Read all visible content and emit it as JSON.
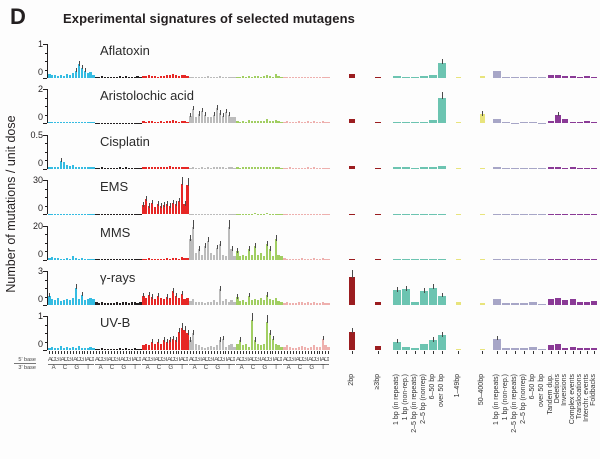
{
  "panel_letter": "D",
  "title": "Experimental signatures of selected mutagens",
  "y_axis_label": "Number of mutations / unit dose",
  "colors": {
    "sub_classes": [
      "#35bce2",
      "#231f20",
      "#e62725",
      "#bcbcbc",
      "#a1ce62",
      "#eeb0ae"
    ],
    "mnv": "#9b1d20",
    "del": "#6cc4b1",
    "size": "#e8e47c",
    "ins": "#a7a6c7",
    "sv": "#8a3a96",
    "axis": "#231f20",
    "error": "#4a4a4a"
  },
  "x_axis": {
    "base5_label": "5' base",
    "base3_label": "3' base",
    "context5": "ACGTACGTACGTACGT",
    "context3": [
      "A",
      "C",
      "G",
      "T"
    ],
    "mnv_labels": [
      "2bp",
      "≥3bp"
    ],
    "del_labels": [
      "1 bp (in repeats)",
      "1 bp (non-rep.)",
      "2–5 bp (in repeats)",
      "2–5 bp (nonrep)",
      "6–50 bp",
      "over 50 bp"
    ],
    "size_labels": [
      "1–49bp",
      "50–400bp"
    ],
    "ins_labels": [
      "1 bp (in repeats)",
      "1 bp (non-rep.)",
      "2–5 bp (in repeats)",
      "2–5 bp (nonrep)",
      "6–50 bp",
      "over 50 bp"
    ],
    "sv_labels": [
      "Tandem dup.",
      "Deletions",
      "Inversions",
      "Complex events",
      "Translocations",
      "Interchr. events",
      "Foldbacks"
    ]
  },
  "chart_data": {
    "type": "bar",
    "title": "Experimental signatures of selected mutagens",
    "ylabel": "Number of mutations / unit dose",
    "substitution_classes": [
      "C>A",
      "C>G",
      "C>T",
      "T>A",
      "T>C",
      "T>G"
    ],
    "rows": [
      {
        "name": "Aflatoxin",
        "ymax": 1,
        "ymax_label": "1",
        "ymin_label": "0",
        "sub": {
          "CA": [
            0.12,
            0.08,
            0.1,
            0.06,
            0.1,
            0.05,
            0.12,
            0.08,
            0.15,
            0.22,
            0.4,
            0.3,
            0.22,
            0.15,
            0.18,
            0.1
          ],
          "CG": [
            0.04,
            0.03,
            0.05,
            0.03,
            0.03,
            0.02,
            0.04,
            0.03,
            0.05,
            0.04,
            0.06,
            0.04,
            0.03,
            0.04,
            0.05,
            0.03
          ],
          "CT": [
            0.06,
            0.05,
            0.08,
            0.06,
            0.05,
            0.04,
            0.06,
            0.05,
            0.08,
            0.1,
            0.12,
            0.08,
            0.06,
            0.08,
            0.1,
            0.06
          ],
          "TA": [
            0.03,
            0.04,
            0.03,
            0.02,
            0.04,
            0.03,
            0.05,
            0.03,
            0.04,
            0.03,
            0.05,
            0.04,
            0.03,
            0.04,
            0.04,
            0.03
          ],
          "TC": [
            0.04,
            0.03,
            0.05,
            0.04,
            0.05,
            0.04,
            0.06,
            0.05,
            0.04,
            0.05,
            0.08,
            0.05,
            0.04,
            0.12,
            0.05,
            0.04
          ],
          "TG": [
            0.03,
            0.02,
            0.03,
            0.02,
            0.03,
            0.04,
            0.03,
            0.02,
            0.04,
            0.03,
            0.04,
            0.03,
            0.02,
            0.03,
            0.04,
            0.03
          ]
        },
        "mnv": [
          0.12,
          0.03
        ],
        "del": [
          0.05,
          0.04,
          0.03,
          0.05,
          0.08,
          0.45
        ],
        "size": [
          0.04,
          0.06
        ],
        "ins": [
          0.2,
          0.04,
          0.03,
          0.03,
          0.04,
          0.02
        ],
        "sv": [
          0.08,
          0.1,
          0.05,
          0.06,
          0.04,
          0.05,
          0.04
        ]
      },
      {
        "name": "Aristolochic acid",
        "ymax": 2,
        "ymax_label": "2",
        "ymin_label": "0",
        "sub": {
          "CA": [
            0.1,
            0.08,
            0.09,
            0.07,
            0.08,
            0.06,
            0.08,
            0.07,
            0.1,
            0.08,
            0.1,
            0.08,
            0.07,
            0.08,
            0.09,
            0.07
          ],
          "CG": [
            0.04,
            0.03,
            0.04,
            0.03,
            0.03,
            0.04,
            0.03,
            0.03,
            0.05,
            0.04,
            0.05,
            0.04,
            0.03,
            0.04,
            0.04,
            0.03
          ],
          "CT": [
            0.12,
            0.1,
            0.15,
            0.12,
            0.1,
            0.08,
            0.12,
            0.1,
            0.15,
            0.12,
            0.18,
            0.12,
            0.1,
            0.12,
            0.14,
            0.1
          ],
          "TA": [
            0.45,
            0.85,
            0.4,
            0.55,
            0.75,
            0.5,
            0.4,
            0.35,
            0.5,
            0.9,
            0.6,
            0.45,
            0.7,
            0.5,
            0.35,
            0.4
          ],
          "TC": [
            0.15,
            0.1,
            0.12,
            0.1,
            0.2,
            0.12,
            0.15,
            0.12,
            0.15,
            0.12,
            0.25,
            0.15,
            0.12,
            0.18,
            0.12,
            0.1
          ],
          "TG": [
            0.1,
            0.12,
            0.08,
            0.08,
            0.1,
            0.15,
            0.1,
            0.08,
            0.12,
            0.1,
            0.15,
            0.1,
            0.08,
            0.12,
            0.1,
            0.08
          ]
        },
        "mnv": [
          0.25,
          0.06
        ],
        "del": [
          0.1,
          0.08,
          0.06,
          0.1,
          0.2,
          1.5
        ],
        "size": [
          0.08,
          0.55
        ],
        "ins": [
          0.25,
          0.06,
          0.05,
          0.06,
          0.06,
          0.04
        ],
        "sv": [
          0.15,
          0.5,
          0.28,
          0.1,
          0.08,
          0.14,
          0.1
        ]
      },
      {
        "name": "Cisplatin",
        "ymax": 0.5,
        "ymax_label": "0.5",
        "ymin_label": "0",
        "sub": {
          "CA": [
            0.02,
            0.02,
            0.03,
            0.02,
            0.12,
            0.1,
            0.06,
            0.04,
            0.05,
            0.03,
            0.03,
            0.02,
            0.02,
            0.02,
            0.03,
            0.02
          ],
          "CG": [
            0.01,
            0.01,
            0.02,
            0.01,
            0.01,
            0.01,
            0.01,
            0.01,
            0.02,
            0.01,
            0.02,
            0.01,
            0.01,
            0.01,
            0.01,
            0.01
          ],
          "CT": [
            0.02,
            0.02,
            0.03,
            0.02,
            0.02,
            0.02,
            0.02,
            0.02,
            0.03,
            0.04,
            0.03,
            0.02,
            0.02,
            0.03,
            0.02,
            0.02
          ],
          "TA": [
            0.01,
            0.02,
            0.01,
            0.01,
            0.02,
            0.01,
            0.02,
            0.01,
            0.02,
            0.02,
            0.03,
            0.02,
            0.01,
            0.02,
            0.02,
            0.01
          ],
          "TC": [
            0.02,
            0.01,
            0.02,
            0.02,
            0.02,
            0.02,
            0.03,
            0.02,
            0.02,
            0.02,
            0.03,
            0.02,
            0.02,
            0.02,
            0.02,
            0.01
          ],
          "TG": [
            0.01,
            0.01,
            0.02,
            0.01,
            0.01,
            0.01,
            0.01,
            0.01,
            0.02,
            0.01,
            0.02,
            0.01,
            0.01,
            0.01,
            0.01,
            0.01
          ]
        },
        "mnv": [
          0.04,
          0.01
        ],
        "del": [
          0.02,
          0.02,
          0.01,
          0.02,
          0.03,
          0.04
        ],
        "size": [
          0.01,
          0.01
        ],
        "ins": [
          0.03,
          0.01,
          0.01,
          0.01,
          0.01,
          0.01
        ],
        "sv": [
          0.02,
          0.02,
          0.01,
          0.02,
          0.01,
          0.01,
          0.01
        ]
      },
      {
        "name": "EMS",
        "ymax": 30,
        "ymax_label": "30",
        "ymin_label": "0",
        "sub": {
          "CA": [
            0.3,
            0.2,
            0.3,
            0.2,
            0.2,
            0.2,
            0.3,
            0.2,
            0.4,
            0.3,
            0.3,
            0.2,
            0.2,
            0.3,
            0.3,
            0.2
          ],
          "CG": [
            0.3,
            0.2,
            0.2,
            0.2,
            0.2,
            0.2,
            0.2,
            0.2,
            0.3,
            0.2,
            0.3,
            0.2,
            0.2,
            0.2,
            0.2,
            0.2
          ],
          "CT": [
            8,
            13,
            7,
            10,
            6,
            9,
            7,
            8,
            9,
            7,
            10,
            9,
            12,
            27,
            9,
            26
          ],
          "TA": [
            0.3,
            0.3,
            0.2,
            0.2,
            0.3,
            0.2,
            0.3,
            0.2,
            0.3,
            0.3,
            0.4,
            0.3,
            0.2,
            0.3,
            0.3,
            0.2
          ],
          "TC": [
            0.5,
            0.4,
            0.5,
            0.4,
            0.6,
            0.5,
            0.7,
            0.5,
            0.6,
            0.5,
            0.8,
            0.6,
            0.5,
            0.6,
            0.5,
            0.4
          ],
          "TG": [
            0.3,
            0.2,
            0.3,
            0.2,
            0.2,
            0.3,
            0.3,
            0.2,
            0.3,
            0.3,
            0.4,
            0.3,
            0.2,
            0.3,
            0.3,
            0.2
          ]
        },
        "mnv": [
          0.5,
          0.2
        ],
        "del": [
          0.4,
          0.3,
          0.2,
          0.3,
          0.4,
          0.5
        ],
        "size": [
          0.2,
          0.2
        ],
        "ins": [
          0.5,
          0.2,
          0.2,
          0.2,
          0.3,
          0.2
        ],
        "sv": [
          0.3,
          0.3,
          0.2,
          0.3,
          0.2,
          0.2,
          0.2
        ]
      },
      {
        "name": "MMS",
        "ymax": 20,
        "ymax_label": "20",
        "ymin_label": "0",
        "sub": {
          "CA": [
            1.2,
            1.6,
            0.8,
            1.0,
            0.6,
            0.5,
            0.7,
            0.6,
            2.0,
            0.8,
            0.6,
            0.8,
            0.5,
            0.5,
            0.6,
            0.4
          ],
          "CG": [
            0.3,
            0.2,
            0.3,
            0.2,
            0.2,
            0.2,
            0.3,
            0.2,
            0.3,
            0.2,
            0.3,
            0.2,
            0.2,
            0.3,
            0.2,
            0.2
          ],
          "CT": [
            0.6,
            0.5,
            0.8,
            0.6,
            0.5,
            0.4,
            0.6,
            0.5,
            0.8,
            0.6,
            1.0,
            0.7,
            0.6,
            1.4,
            0.8,
            1.2
          ],
          "TA": [
            12,
            19,
            4,
            6,
            3,
            8,
            11,
            4,
            3,
            7,
            9,
            3,
            2,
            19,
            6,
            2
          ],
          "TC": [
            5,
            2,
            3,
            2,
            6,
            3,
            8,
            3,
            4,
            2,
            9,
            6,
            2,
            12,
            3,
            2
          ],
          "TG": [
            0.8,
            0.5,
            0.6,
            0.4,
            0.5,
            0.6,
            0.8,
            0.5,
            0.6,
            0.5,
            0.8,
            0.6,
            0.4,
            1.0,
            0.6,
            0.4
          ]
        },
        "mnv": [
          0.5,
          0.2
        ],
        "del": [
          0.6,
          0.4,
          0.3,
          0.4,
          0.5,
          0.6
        ],
        "size": [
          0.2,
          0.2
        ],
        "ins": [
          0.6,
          0.3,
          0.2,
          0.3,
          0.3,
          0.2
        ],
        "sv": [
          0.4,
          0.4,
          0.3,
          0.3,
          0.3,
          0.2,
          0.3
        ]
      },
      {
        "name": "γ-rays",
        "ymax": 3,
        "ymax_label": "3",
        "ymin_label": "0",
        "sub": {
          "CA": [
            0.8,
            0.5,
            0.45,
            0.6,
            0.35,
            0.4,
            0.5,
            0.4,
            0.6,
            1.5,
            0.5,
            0.9,
            0.4,
            0.5,
            0.65,
            0.5
          ],
          "CG": [
            0.3,
            0.2,
            0.25,
            0.2,
            0.2,
            0.15,
            0.2,
            0.25,
            0.2,
            0.3,
            0.25,
            0.2,
            0.3,
            0.25,
            0.2,
            0.3
          ],
          "CT": [
            0.8,
            0.6,
            0.9,
            0.7,
            0.5,
            0.8,
            0.6,
            0.5,
            0.7,
            0.6,
            1.2,
            0.8,
            0.6,
            1.0,
            0.5,
            0.6
          ],
          "TA": [
            0.35,
            0.5,
            0.3,
            0.25,
            0.3,
            0.2,
            0.3,
            0.25,
            0.4,
            0.3,
            1.4,
            0.35,
            0.5,
            0.3,
            0.4,
            0.3
          ],
          "TC": [
            0.7,
            0.35,
            0.45,
            0.3,
            0.8,
            0.4,
            0.5,
            0.4,
            0.6,
            0.4,
            0.85,
            0.5,
            0.4,
            0.6,
            0.35,
            0.3
          ],
          "TG": [
            0.2,
            0.3,
            0.2,
            0.15,
            0.2,
            0.3,
            0.25,
            0.2,
            0.3,
            0.2,
            0.3,
            0.2,
            0.2,
            0.3,
            0.2,
            0.2
          ]
        },
        "mnv": [
          2.5,
          0.3
        ],
        "del": [
          1.3,
          1.4,
          0.25,
          1.2,
          1.5,
          0.8
        ],
        "size": [
          0.25,
          0.2
        ],
        "ins": [
          0.55,
          0.2,
          0.15,
          0.2,
          0.3,
          0.12
        ],
        "sv": [
          0.5,
          0.6,
          0.4,
          0.5,
          0.3,
          0.3,
          0.35
        ]
      },
      {
        "name": "UV-B",
        "ymax": 1,
        "ymax_label": "1",
        "ymin_label": "0",
        "sub": {
          "CA": [
            0.08,
            0.1,
            0.06,
            0.08,
            0.12,
            0.08,
            0.1,
            0.06,
            0.1,
            0.08,
            0.12,
            0.08,
            0.06,
            0.08,
            0.1,
            0.06
          ],
          "CG": [
            0.05,
            0.04,
            0.06,
            0.04,
            0.04,
            0.05,
            0.04,
            0.04,
            0.06,
            0.05,
            0.08,
            0.05,
            0.04,
            0.06,
            0.05,
            0.04
          ],
          "CT": [
            0.15,
            0.2,
            0.15,
            0.25,
            0.2,
            0.25,
            0.2,
            0.3,
            0.25,
            0.3,
            0.35,
            0.3,
            0.55,
            0.65,
            0.6,
            0.5
          ],
          "TA": [
            0.3,
            0.5,
            0.2,
            0.15,
            0.1,
            0.08,
            0.1,
            0.12,
            0.1,
            0.15,
            0.3,
            0.35,
            0.1,
            0.15,
            0.2,
            0.1
          ],
          "TC": [
            0.2,
            0.3,
            0.15,
            0.2,
            0.1,
            0.9,
            0.3,
            0.2,
            0.15,
            0.2,
            0.85,
            0.5,
            0.35,
            0.2,
            0.15,
            0.1
          ],
          "TG": [
            0.1,
            0.15,
            0.1,
            0.08,
            0.08,
            0.1,
            0.12,
            0.1,
            0.08,
            0.1,
            0.15,
            0.1,
            0.1,
            0.35,
            0.15,
            0.1
          ]
        },
        "mnv": [
          0.55,
          0.12
        ],
        "del": [
          0.25,
          0.1,
          0.08,
          0.2,
          0.3,
          0.45
        ],
        "size": [
          0.05,
          0.05
        ],
        "ins": [
          0.35,
          0.08,
          0.06,
          0.08,
          0.1,
          0.05
        ],
        "sv": [
          0.15,
          0.18,
          0.08,
          0.1,
          0.06,
          0.06,
          0.06
        ]
      }
    ]
  }
}
